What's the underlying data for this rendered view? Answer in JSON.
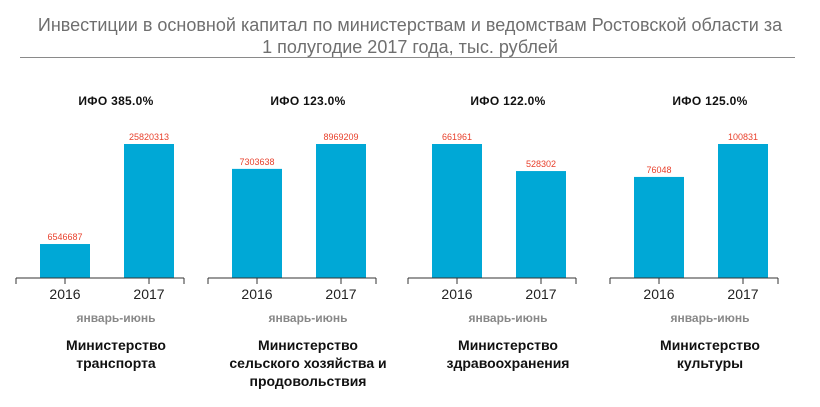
{
  "title": {
    "line1": "Инвестиции в основной капитал по министерствам и ведомствам Ростовской области за",
    "line2": "1 полугодие 2017 года, тыс. рублей"
  },
  "colors": {
    "bar": "#00a8d6",
    "value_label": "#e8412c",
    "axis": "#333333",
    "title": "#6f6f6f"
  },
  "chart_data": [
    {
      "type": "bar",
      "annotation": "ИФО 385.0%",
      "categories": [
        "2016",
        "2017"
      ],
      "values": [
        6546687,
        25820313
      ],
      "value_labels": [
        "6546687",
        "25820313"
      ],
      "period_label": "январь-июнь",
      "group_label": [
        "Министерство",
        "транспорта"
      ],
      "ylim": [
        0,
        25820313
      ]
    },
    {
      "type": "bar",
      "annotation": "ИФО 123.0%",
      "categories": [
        "2016",
        "2017"
      ],
      "values": [
        7303638,
        8969209
      ],
      "value_labels": [
        "7303638",
        "8969209"
      ],
      "period_label": "январь-июнь",
      "group_label": [
        "Министерство",
        "сельского хозяйства и",
        "продовольствия"
      ],
      "ylim": [
        0,
        8969209
      ]
    },
    {
      "type": "bar",
      "annotation": "ИФО 122.0%",
      "categories": [
        "2016",
        "2017"
      ],
      "values": [
        661961,
        528302
      ],
      "value_labels": [
        "661961",
        "528302"
      ],
      "period_label": "январь-июнь",
      "group_label": [
        "Министерство",
        "здравоохранения"
      ],
      "ylim": [
        0,
        661961
      ]
    },
    {
      "type": "bar",
      "annotation": "ИФО 125.0%",
      "categories": [
        "2016",
        "2017"
      ],
      "values": [
        76048,
        100831
      ],
      "value_labels": [
        "76048",
        "100831"
      ],
      "period_label": "январь-июнь",
      "group_label": [
        "Министерство",
        "культуры"
      ],
      "ylim": [
        0,
        100831
      ]
    }
  ]
}
